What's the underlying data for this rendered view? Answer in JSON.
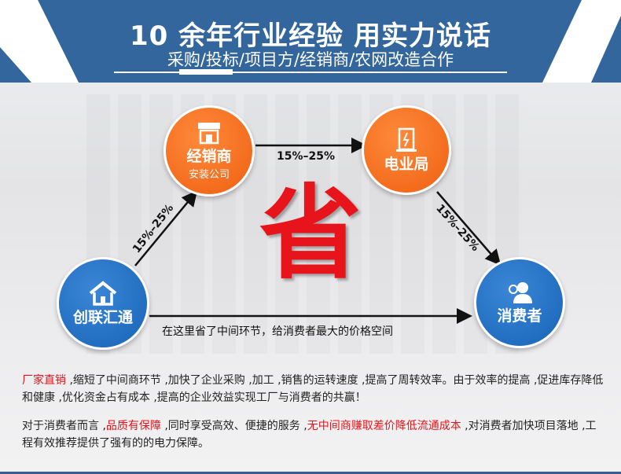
{
  "header": {
    "title": "10 余年行业经验 用实力说话",
    "subtitle": "采购/投标/项目方/经销商/农网改造合作",
    "bg_color": "#33669c"
  },
  "nodes": {
    "dealer": {
      "label": "经销商",
      "sub": "安装公司",
      "icon": "store-icon",
      "color": "#f26a1b"
    },
    "power": {
      "label": "电业局",
      "icon": "power-building-icon",
      "color": "#f26a1b"
    },
    "company": {
      "label": "创联汇通",
      "icon": "home-icon",
      "color": "#1f6fc0"
    },
    "consumer": {
      "label": "消费者",
      "icon": "users-icon",
      "color": "#1f6fc0"
    }
  },
  "arrows": {
    "dealer_to_power": "15%–25%",
    "company_to_dealer": "15%–25%",
    "power_to_consumer": "15%–25%",
    "bottom": "在这里省了中间环节，给消费者最大的价格空间"
  },
  "center_char": "省",
  "paragraphs": [
    [
      {
        "t": "厂家直销",
        "red": true
      },
      {
        "t": " ,缩短了中间商环节 ,加快了企业采购 ,加工 ,销售的运转速度 ,提高了周转效率。由于效率的提高 ,促进库存降低和健康 ,优化资金占有成本 ,提高的企业效益实现工厂与消费者的共赢！",
        "red": false
      }
    ],
    [
      {
        "t": "对于消费者而言 ,",
        "red": false
      },
      {
        "t": "品质有保障",
        "red": true
      },
      {
        "t": " ,同时享受高效、便捷的服务 ,",
        "red": false
      },
      {
        "t": "无中间商赚取差价降低流通成本",
        "red": true
      },
      {
        "t": " ,对消费者加快项目落地 ,工程有效推荐提供了强有的的电力保障。",
        "red": false
      }
    ]
  ]
}
